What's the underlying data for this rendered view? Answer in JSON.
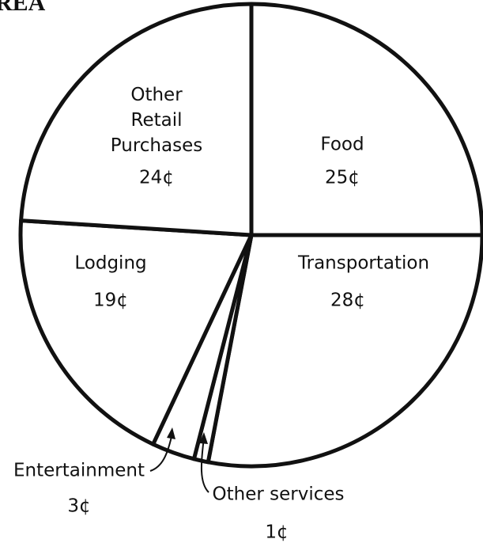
{
  "chart_data": {
    "type": "pie",
    "title": "REA",
    "categories": [
      "Food",
      "Transportation",
      "Other services",
      "Entertainment",
      "Lodging",
      "Other Retail Purchases"
    ],
    "values": [
      25,
      28,
      1,
      3,
      19,
      24
    ],
    "value_labels": [
      "25¢",
      "28¢",
      "1¢",
      "3¢",
      "19¢",
      "24¢"
    ],
    "color": "#ffffff"
  }
}
